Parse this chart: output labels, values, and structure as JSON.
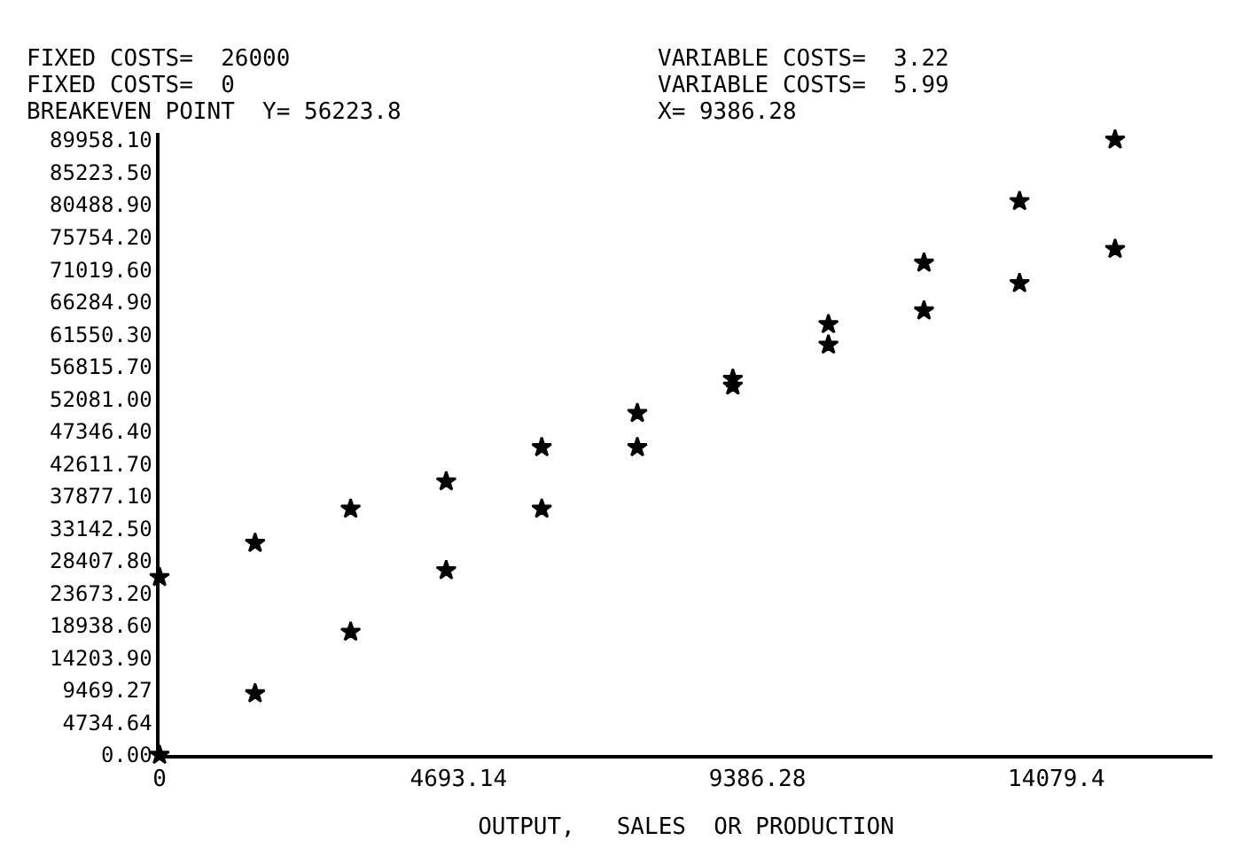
{
  "chart_data": {
    "type": "scatter",
    "annotations": [
      "FIXED COSTS=  26000",
      "VARIABLE COSTS=  3.22",
      "FIXED COSTS=  0",
      "VARIABLE COSTS=  5.99",
      "BREAKEVEN POINT  Y= 56223.8",
      "X= 9386.28"
    ],
    "xlabel": "OUTPUT,   SALES  OR PRODUCTION",
    "series": [
      {
        "color": "#000000",
        "x": [
          0,
          1500,
          3000,
          4500,
          6000,
          7500,
          9000,
          10500,
          12000,
          13500,
          15000
        ],
        "values": [
          26000,
          31000,
          36000,
          40000,
          45000,
          50000,
          55000,
          60000,
          65000,
          69000,
          74000
        ]
      },
      {
        "color": "#000000",
        "x": [
          0,
          1500,
          3000,
          4500,
          6000,
          7500,
          9000,
          10500,
          12000,
          13500,
          15000
        ],
        "values": [
          0,
          9000,
          18000,
          27000,
          36000,
          45000,
          54000,
          63000,
          72000,
          81000,
          90000
        ]
      }
    ],
    "marker": "star",
    "xlim": [
      0,
      16530
    ],
    "ylim": [
      0,
      91000
    ],
    "xticks": [
      0,
      4693.14,
      9386.28,
      14079.4
    ],
    "yticks": [
      {
        "value": 0,
        "label": "0.00"
      },
      {
        "value": 4734.64,
        "label": "4734.64"
      },
      {
        "value": 9469.27,
        "label": "9469.27"
      },
      {
        "value": 14203.9,
        "label": "14203.90"
      },
      {
        "value": 18938.6,
        "label": "18938.60"
      },
      {
        "value": 23673.2,
        "label": "23673.20"
      },
      {
        "value": 28407.8,
        "label": "28407.80"
      },
      {
        "value": 33142.5,
        "label": "33142.50"
      },
      {
        "value": 37877.1,
        "label": "37877.10"
      },
      {
        "value": 42611.7,
        "label": "42611.70"
      },
      {
        "value": 47346.4,
        "label": "47346.40"
      },
      {
        "value": 52081,
        "label": "52081.00"
      },
      {
        "value": 56815.7,
        "label": "56815.70"
      },
      {
        "value": 61550.3,
        "label": "61550.30"
      },
      {
        "value": 66284.9,
        "label": "66284.90"
      },
      {
        "value": 71019.6,
        "label": "71019.60"
      },
      {
        "value": 75754.2,
        "label": "75754.20"
      },
      {
        "value": 80488.9,
        "label": "80488.90"
      },
      {
        "value": 85223.5,
        "label": "85223.50"
      },
      {
        "value": 89958.1,
        "label": "89958.10"
      }
    ]
  }
}
